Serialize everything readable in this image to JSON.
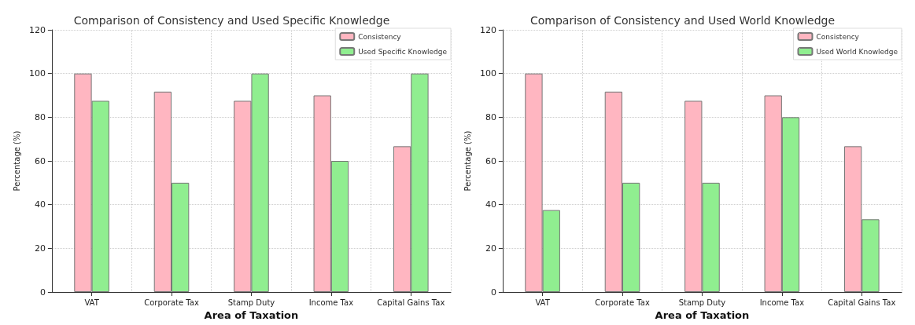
{
  "chart_data": [
    {
      "type": "bar",
      "title": "Comparison of Consistency and Used Specific Knowledge",
      "xlabel": "Area of Taxation",
      "ylabel": "Percentage (%)",
      "categories": [
        "VAT",
        "Corporate Tax",
        "Stamp Duty",
        "Income Tax",
        "Capital Gains Tax"
      ],
      "series": [
        {
          "name": "Consistency",
          "color": "#ffb6c1",
          "values": [
            100,
            91.7,
            87.5,
            90,
            66.7
          ]
        },
        {
          "name": "Used Specific Knowledge",
          "color": "#90ee90",
          "values": [
            87.5,
            50,
            100,
            60,
            100
          ]
        }
      ],
      "ylim": [
        0,
        120
      ],
      "yticks": [
        0,
        20,
        40,
        60,
        80,
        100,
        120
      ],
      "grid": true,
      "legend": "top right"
    },
    {
      "type": "bar",
      "title": "Comparison of Consistency and Used World Knowledge",
      "xlabel": "Area of Taxation",
      "ylabel": "Percentage (%)",
      "categories": [
        "VAT",
        "Corporate Tax",
        "Stamp Duty",
        "Income Tax",
        "Capital Gains Tax"
      ],
      "series": [
        {
          "name": "Consistency",
          "color": "#ffb6c1",
          "values": [
            100,
            91.7,
            87.5,
            90,
            66.7
          ]
        },
        {
          "name": "Used World Knowledge",
          "color": "#90ee90",
          "values": [
            37.5,
            50,
            50,
            80,
            33.3
          ]
        }
      ],
      "ylim": [
        0,
        120
      ],
      "yticks": [
        0,
        20,
        40,
        60,
        80,
        100,
        120
      ],
      "grid": true,
      "legend": "top right"
    }
  ]
}
